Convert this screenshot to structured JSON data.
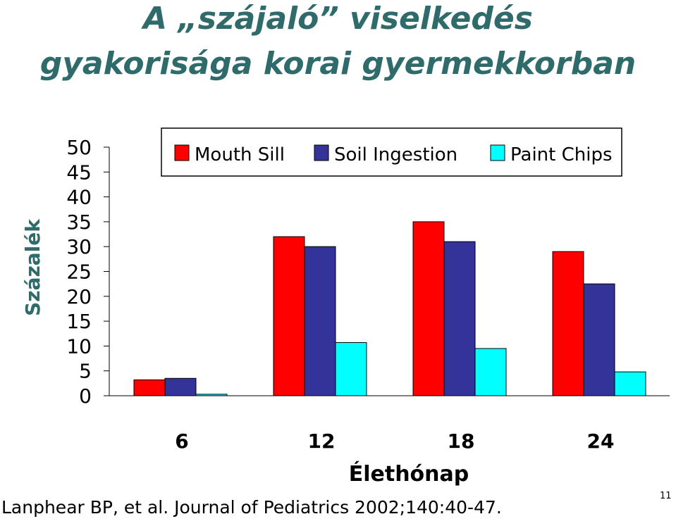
{
  "slide": {
    "title_line1": "A „szájaló” viselkedés",
    "title_line2": "gyakorisága korai gyermekkorban",
    "citation": "Lanphear BP, et al. Journal of Pediatrics 2002;140:40-47.",
    "page_number": "11"
  },
  "chart_data": {
    "type": "bar",
    "title": "",
    "xlabel": "Élethónap",
    "ylabel": "Százalék",
    "categories": [
      "6",
      "12",
      "18",
      "24"
    ],
    "ylim": [
      0,
      50
    ],
    "yticks": [
      0,
      5,
      10,
      15,
      20,
      25,
      30,
      35,
      40,
      45,
      50
    ],
    "legend_position": "top",
    "series": [
      {
        "name": "Mouth Sill",
        "color": "#ff0000",
        "values": [
          3.2,
          32,
          35,
          29
        ]
      },
      {
        "name": "Soil Ingestion",
        "color": "#333399",
        "values": [
          3.5,
          30,
          31,
          22.5
        ]
      },
      {
        "name": "Paint Chips",
        "color": "#00ffff",
        "values": [
          0.3,
          10.7,
          9.5,
          4.8
        ]
      }
    ]
  }
}
